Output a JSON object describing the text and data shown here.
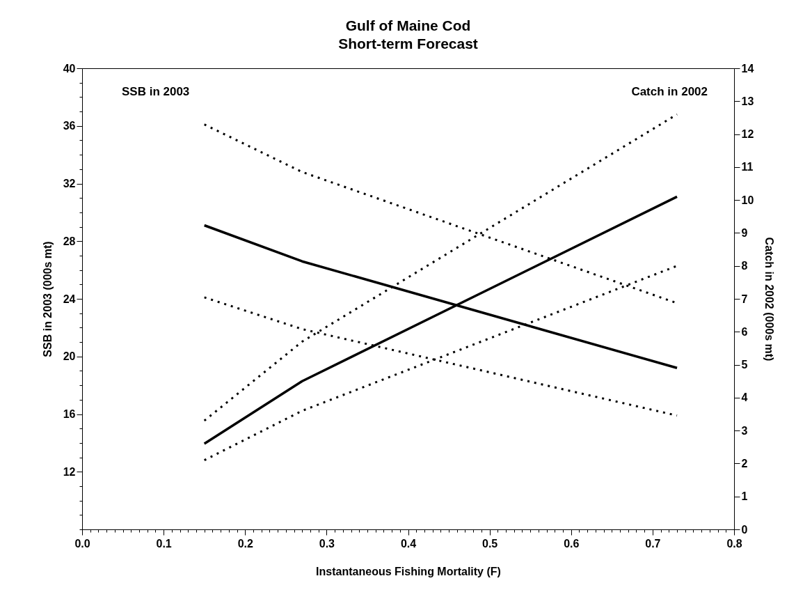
{
  "chart_data": {
    "type": "line",
    "title": "Gulf of Maine Cod\nShort-term Forecast",
    "xlabel": "Instantaneous Fishing Mortality (F)",
    "ylabel": "SSB in 2003 (000s mt)",
    "y2label": "Catch in 2002 (000s mt)",
    "annotations": [
      "SSB in 2003",
      "Catch in 2002"
    ],
    "x": [
      0.15,
      0.27,
      0.73
    ],
    "series": [
      {
        "color": "#000000",
        "axis": "y",
        "line_style": "solid",
        "values": [
          29.1,
          26.6,
          19.2
        ]
      },
      {
        "color": "#000000",
        "axis": "y",
        "line_style": "dotted",
        "values": [
          36.1,
          32.8,
          23.7
        ]
      },
      {
        "color": "#000000",
        "axis": "y",
        "line_style": "dotted",
        "values": [
          24.1,
          21.9,
          15.9
        ]
      },
      {
        "color": "#000000",
        "axis": "y2",
        "line_style": "solid",
        "values": [
          2.6,
          4.5,
          10.1
        ]
      },
      {
        "color": "#000000",
        "axis": "y2",
        "line_style": "dotted",
        "values": [
          3.3,
          5.7,
          12.6
        ]
      },
      {
        "color": "#000000",
        "axis": "y2",
        "line_style": "dotted",
        "values": [
          2.1,
          3.6,
          8.0
        ]
      }
    ],
    "xlim": [
      0,
      0.8
    ],
    "xticks": [
      {
        "value": 0,
        "label": "0.0"
      },
      {
        "value": 0.01,
        "label": null
      },
      {
        "value": 0.02,
        "label": null
      },
      {
        "value": 0.03,
        "label": null
      },
      {
        "value": 0.04,
        "label": null
      },
      {
        "value": 0.05,
        "label": null
      },
      {
        "value": 0.06,
        "label": null
      },
      {
        "value": 0.07,
        "label": null
      },
      {
        "value": 0.08,
        "label": null
      },
      {
        "value": 0.09,
        "label": null
      },
      {
        "value": 0.1,
        "label": "0.1"
      },
      {
        "value": 0.11,
        "label": null
      },
      {
        "value": 0.12,
        "label": null
      },
      {
        "value": 0.13,
        "label": null
      },
      {
        "value": 0.14,
        "label": null
      },
      {
        "value": 0.15,
        "label": null
      },
      {
        "value": 0.16,
        "label": null
      },
      {
        "value": 0.17,
        "label": null
      },
      {
        "value": 0.18,
        "label": null
      },
      {
        "value": 0.19,
        "label": null
      },
      {
        "value": 0.2,
        "label": "0.2"
      },
      {
        "value": 0.21,
        "label": null
      },
      {
        "value": 0.22,
        "label": null
      },
      {
        "value": 0.23,
        "label": null
      },
      {
        "value": 0.24,
        "label": null
      },
      {
        "value": 0.25,
        "label": null
      },
      {
        "value": 0.26,
        "label": null
      },
      {
        "value": 0.27,
        "label": null
      },
      {
        "value": 0.28,
        "label": null
      },
      {
        "value": 0.29,
        "label": null
      },
      {
        "value": 0.3,
        "label": "0.3"
      },
      {
        "value": 0.31,
        "label": null
      },
      {
        "value": 0.32,
        "label": null
      },
      {
        "value": 0.33,
        "label": null
      },
      {
        "value": 0.34,
        "label": null
      },
      {
        "value": 0.35,
        "label": null
      },
      {
        "value": 0.36,
        "label": null
      },
      {
        "value": 0.37,
        "label": null
      },
      {
        "value": 0.38,
        "label": null
      },
      {
        "value": 0.39,
        "label": null
      },
      {
        "value": 0.4,
        "label": "0.4"
      },
      {
        "value": 0.41,
        "label": null
      },
      {
        "value": 0.42,
        "label": null
      },
      {
        "value": 0.43,
        "label": null
      },
      {
        "value": 0.44,
        "label": null
      },
      {
        "value": 0.45,
        "label": null
      },
      {
        "value": 0.46,
        "label": null
      },
      {
        "value": 0.47,
        "label": null
      },
      {
        "value": 0.48,
        "label": null
      },
      {
        "value": 0.49,
        "label": null
      },
      {
        "value": 0.5,
        "label": "0.5"
      },
      {
        "value": 0.51,
        "label": null
      },
      {
        "value": 0.52,
        "label": null
      },
      {
        "value": 0.53,
        "label": null
      },
      {
        "value": 0.54,
        "label": null
      },
      {
        "value": 0.55,
        "label": null
      },
      {
        "value": 0.56,
        "label": null
      },
      {
        "value": 0.57,
        "label": null
      },
      {
        "value": 0.58,
        "label": null
      },
      {
        "value": 0.59,
        "label": null
      },
      {
        "value": 0.6,
        "label": "0.6"
      },
      {
        "value": 0.61,
        "label": null
      },
      {
        "value": 0.62,
        "label": null
      },
      {
        "value": 0.63,
        "label": null
      },
      {
        "value": 0.64,
        "label": null
      },
      {
        "value": 0.65,
        "label": null
      },
      {
        "value": 0.66,
        "label": null
      },
      {
        "value": 0.67,
        "label": null
      },
      {
        "value": 0.68,
        "label": null
      },
      {
        "value": 0.69,
        "label": null
      },
      {
        "value": 0.7,
        "label": "0.7"
      },
      {
        "value": 0.71,
        "label": null
      },
      {
        "value": 0.72,
        "label": null
      },
      {
        "value": 0.73,
        "label": null
      },
      {
        "value": 0.74,
        "label": null
      },
      {
        "value": 0.75,
        "label": null
      },
      {
        "value": 0.76,
        "label": null
      },
      {
        "value": 0.77,
        "label": null
      },
      {
        "value": 0.78,
        "label": null
      },
      {
        "value": 0.79,
        "label": null
      },
      {
        "value": 0.8,
        "label": "0.8"
      }
    ],
    "ylim": [
      8,
      40
    ],
    "yticks": [
      {
        "value": 8,
        "label": null
      },
      {
        "value": 9,
        "label": null
      },
      {
        "value": 10,
        "label": null
      },
      {
        "value": 11,
        "label": null
      },
      12,
      {
        "value": 13,
        "label": null
      },
      {
        "value": 14,
        "label": null
      },
      {
        "value": 15,
        "label": null
      },
      16,
      {
        "value": 17,
        "label": null
      },
      {
        "value": 18,
        "label": null
      },
      {
        "value": 19,
        "label": null
      },
      20,
      {
        "value": 21,
        "label": null
      },
      {
        "value": 22,
        "label": null
      },
      {
        "value": 23,
        "label": null
      },
      24,
      {
        "value": 25,
        "label": null
      },
      {
        "value": 26,
        "label": null
      },
      {
        "value": 27,
        "label": null
      },
      28,
      {
        "value": 29,
        "label": null
      },
      {
        "value": 30,
        "label": null
      },
      {
        "value": 31,
        "label": null
      },
      32,
      {
        "value": 33,
        "label": null
      },
      {
        "value": 34,
        "label": null
      },
      {
        "value": 35,
        "label": null
      },
      36,
      {
        "value": 37,
        "label": null
      },
      {
        "value": 38,
        "label": null
      },
      {
        "value": 39,
        "label": null
      },
      40
    ],
    "y2lim": [
      0,
      14
    ],
    "y2ticks": [
      0,
      1,
      2,
      3,
      4,
      5,
      6,
      7,
      8,
      9,
      10,
      11,
      12,
      13,
      14
    ],
    "grid": false
  }
}
